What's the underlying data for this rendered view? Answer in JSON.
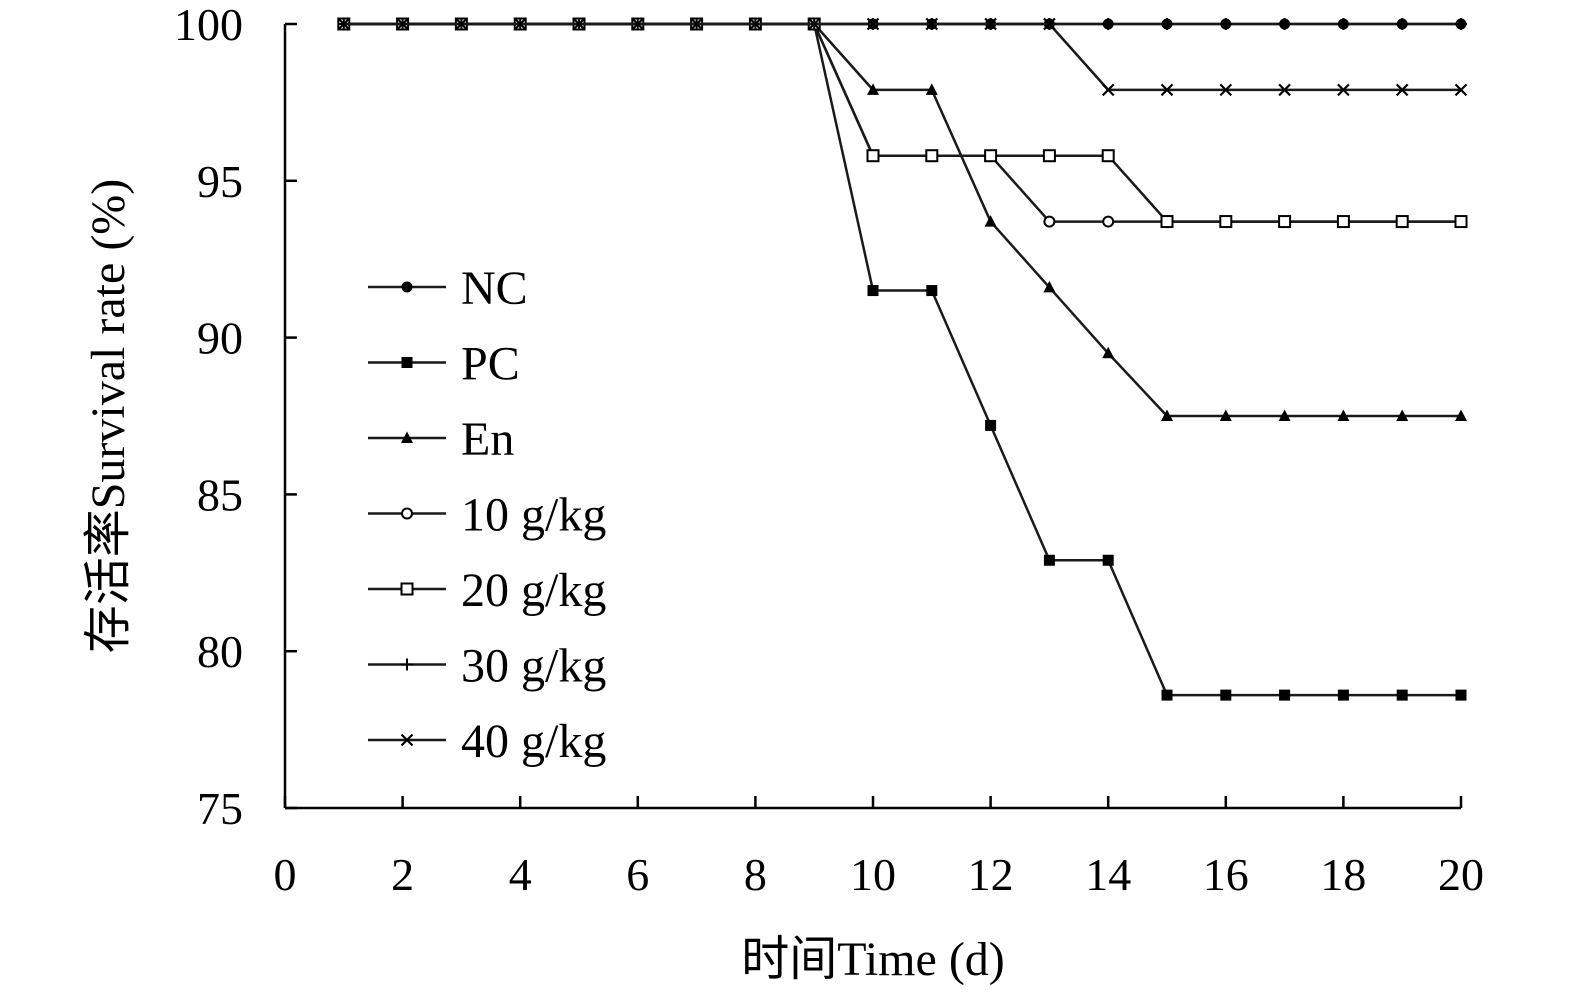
{
  "chart_data": {
    "type": "line",
    "xlabel": "时间Time (d)",
    "ylabel": "存活率Survival rate (%)",
    "xlim": [
      0,
      20
    ],
    "ylim": [
      75,
      100
    ],
    "x_ticks": [
      "0",
      "2",
      "4",
      "6",
      "8",
      "10",
      "12",
      "14",
      "16",
      "18",
      "20"
    ],
    "y_ticks": [
      "100",
      "95",
      "90",
      "85",
      "80",
      "75"
    ],
    "grid": false,
    "legend_position": "left-center",
    "x": [
      1,
      2,
      3,
      4,
      5,
      6,
      7,
      8,
      9,
      10,
      11,
      12,
      13,
      14,
      15,
      16,
      17,
      18,
      19,
      20
    ],
    "series": [
      {
        "name": "NC",
        "marker": "filled-circle",
        "values": [
          100,
          100,
          100,
          100,
          100,
          100,
          100,
          100,
          100,
          100,
          100,
          100,
          100,
          100,
          100,
          100,
          100,
          100,
          100,
          100
        ]
      },
      {
        "name": "PC",
        "marker": "filled-square",
        "values": [
          100,
          100,
          100,
          100,
          100,
          100,
          100,
          100,
          100,
          91.5,
          91.5,
          87.2,
          82.9,
          82.9,
          78.6,
          78.6,
          78.6,
          78.6,
          78.6,
          78.6
        ]
      },
      {
        "name": "En",
        "marker": "filled-triangle",
        "values": [
          100,
          100,
          100,
          100,
          100,
          100,
          100,
          100,
          100,
          97.9,
          97.9,
          93.7,
          91.6,
          89.5,
          87.5,
          87.5,
          87.5,
          87.5,
          87.5,
          87.5
        ]
      },
      {
        "name": "10 g/kg",
        "marker": "open-circle",
        "values": [
          100,
          100,
          100,
          100,
          100,
          100,
          100,
          100,
          100,
          95.8,
          95.8,
          95.8,
          93.7,
          93.7,
          93.7,
          93.7,
          93.7,
          93.7,
          93.7,
          93.7
        ]
      },
      {
        "name": "20 g/kg",
        "marker": "open-square",
        "values": [
          100,
          100,
          100,
          100,
          100,
          100,
          100,
          100,
          100,
          95.8,
          95.8,
          95.8,
          95.8,
          95.8,
          93.7,
          93.7,
          93.7,
          93.7,
          93.7,
          93.7
        ]
      },
      {
        "name": "30 g/kg",
        "marker": "plus",
        "values": [
          100,
          100,
          100,
          100,
          100,
          100,
          100,
          100,
          100,
          100,
          100,
          100,
          100,
          100,
          100,
          100,
          100,
          100,
          100,
          100
        ]
      },
      {
        "name": "40 g/kg",
        "marker": "cross",
        "values": [
          100,
          100,
          100,
          100,
          100,
          100,
          100,
          100,
          100,
          100,
          100,
          100,
          100,
          97.9,
          97.9,
          97.9,
          97.9,
          97.9,
          97.9,
          97.9
        ]
      }
    ]
  }
}
